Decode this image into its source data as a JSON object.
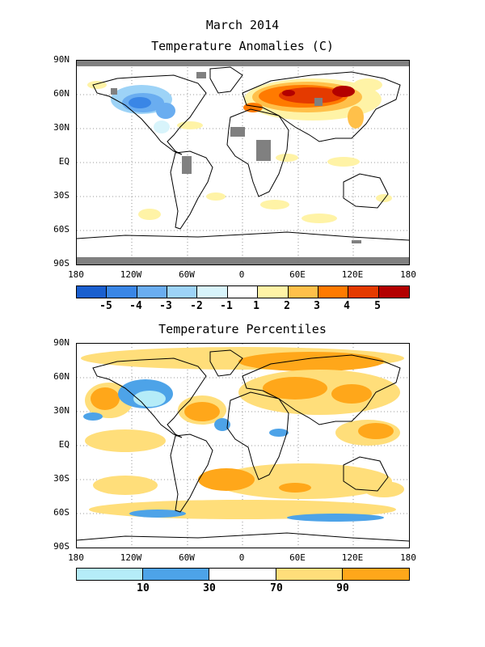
{
  "top": {
    "title_line1": "March 2014",
    "title_line2": "Temperature Anomalies (C)",
    "colorbar": {
      "colors": [
        "#1a5fcf",
        "#3a86e6",
        "#6aadf0",
        "#9dd3f7",
        "#d8f4fb",
        "#ffffff",
        "#fff3a6",
        "#ffc04a",
        "#ff7a00",
        "#e43a00",
        "#b30000"
      ],
      "labels": [
        "-5",
        "-4",
        "-3",
        "-2",
        "-1",
        "1",
        "2",
        "3",
        "4",
        "5"
      ]
    }
  },
  "bottom": {
    "title": "Temperature Percentiles",
    "colorbar": {
      "colors": [
        "#b5ecf8",
        "#4da3e8",
        "#ffffff",
        "#ffde7a",
        "#ffa71a"
      ],
      "labels": [
        "10",
        "30",
        "70",
        "90"
      ]
    }
  },
  "axes": {
    "lat_labels": [
      "90N",
      "60N",
      "30N",
      "EQ",
      "30S",
      "60S",
      "90S"
    ],
    "lon_labels": [
      "180",
      "120W",
      "60W",
      "0",
      "60E",
      "120E",
      "180"
    ]
  }
}
